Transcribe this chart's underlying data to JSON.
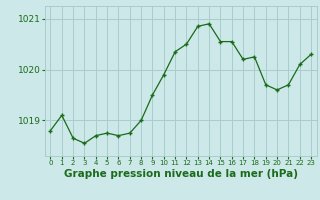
{
  "x": [
    0,
    1,
    2,
    3,
    4,
    5,
    6,
    7,
    8,
    9,
    10,
    11,
    12,
    13,
    14,
    15,
    16,
    17,
    18,
    19,
    20,
    21,
    22,
    23
  ],
  "y": [
    1018.8,
    1019.1,
    1018.65,
    1018.55,
    1018.7,
    1018.75,
    1018.7,
    1018.75,
    1019.0,
    1019.5,
    1019.9,
    1020.35,
    1020.5,
    1020.85,
    1020.9,
    1020.55,
    1020.55,
    1020.2,
    1020.25,
    1019.7,
    1019.6,
    1019.7,
    1020.1,
    1020.3
  ],
  "line_color": "#1a6b1a",
  "marker": "+",
  "background_color": "#cce8e8",
  "grid_color": "#aacccc",
  "xlabel": "Graphe pression niveau de la mer (hPa)",
  "xlabel_fontsize": 7.5,
  "xlabel_color": "#1a6b1a",
  "tick_color": "#1a6b1a",
  "ylim": [
    1018.3,
    1021.25
  ],
  "yticks": [
    1019,
    1020,
    1021
  ],
  "xtick_labels": [
    "0",
    "1",
    "2",
    "3",
    "4",
    "5",
    "6",
    "7",
    "8",
    "9",
    "10",
    "11",
    "12",
    "13",
    "14",
    "15",
    "16",
    "17",
    "18",
    "19",
    "20",
    "21",
    "22",
    "23"
  ]
}
